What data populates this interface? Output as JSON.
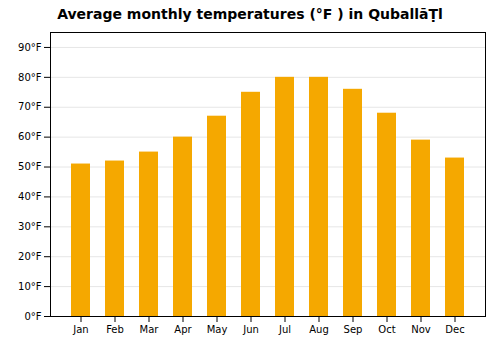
{
  "chart_data": {
    "type": "bar",
    "title": "Average monthly temperatures (°F ) in QuballāṬl",
    "categories": [
      "Jan",
      "Feb",
      "Mar",
      "Apr",
      "May",
      "Jun",
      "Jul",
      "Aug",
      "Sep",
      "Oct",
      "Nov",
      "Dec"
    ],
    "values": [
      51,
      52,
      55,
      60,
      67,
      75,
      80,
      80,
      76,
      68,
      59,
      53
    ],
    "color": "#F5A800",
    "ylim": [
      0,
      95
    ],
    "yticks": [
      {
        "value": 0,
        "label": "0°F"
      },
      {
        "value": 10,
        "label": "10°F"
      },
      {
        "value": 20,
        "label": "20°F"
      },
      {
        "value": 30,
        "label": "30°F"
      },
      {
        "value": 40,
        "label": "40°F"
      },
      {
        "value": 50,
        "label": "50°F"
      },
      {
        "value": 60,
        "label": "60°F"
      },
      {
        "value": 70,
        "label": "70°F"
      },
      {
        "value": 80,
        "label": "80°F"
      },
      {
        "value": 90,
        "label": "90°F"
      }
    ],
    "grid": true
  }
}
